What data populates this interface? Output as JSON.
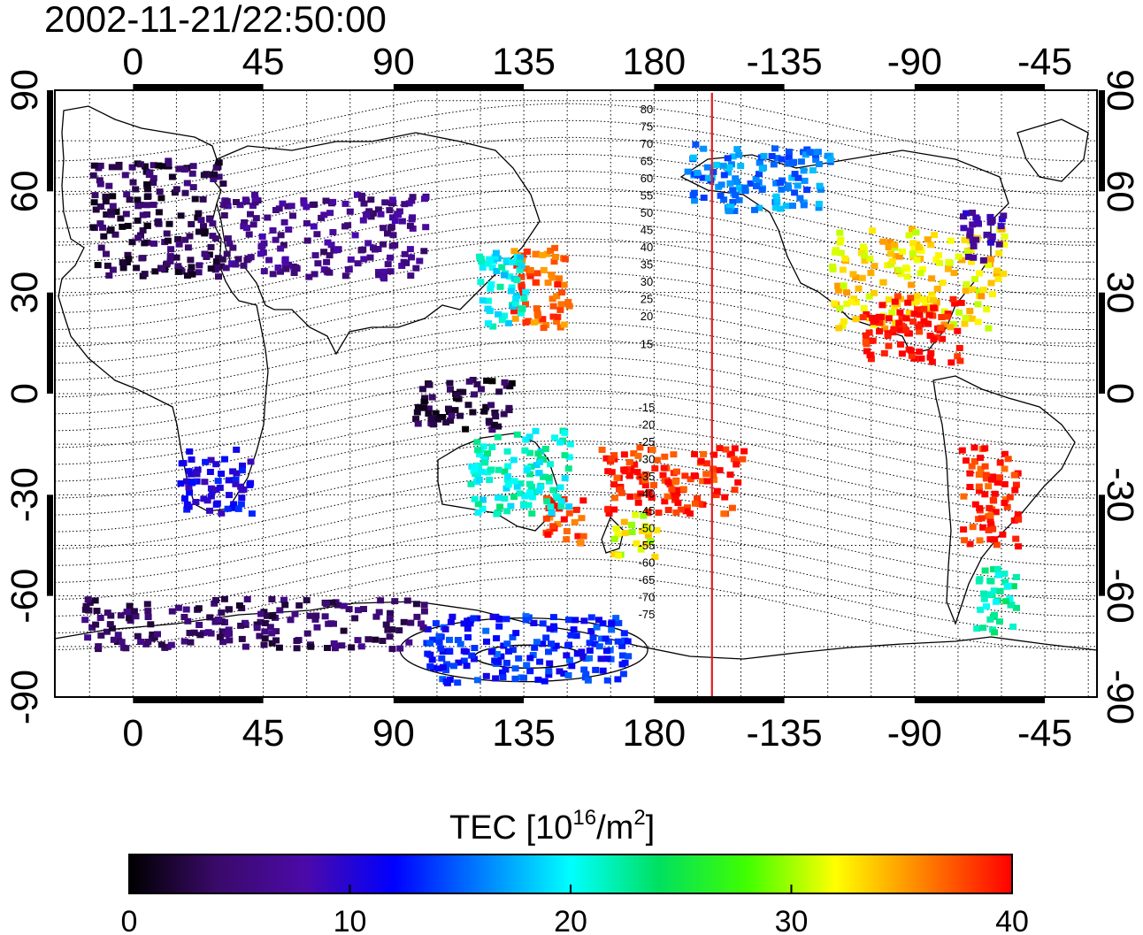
{
  "title": "2002-11-21/22:50:00",
  "map": {
    "lon_ticks_deg": [
      0,
      45,
      90,
      135,
      180,
      225,
      270,
      315
    ],
    "lon_tick_labels": [
      "0",
      "45",
      "90",
      "135",
      "180",
      "-135",
      "-90",
      "-45"
    ],
    "lat_ticks_deg": [
      90,
      60,
      30,
      0,
      -30,
      -60,
      -90
    ],
    "lat_tick_labels": [
      "90",
      "60",
      "30",
      "0",
      "-30",
      "-60",
      "-90"
    ],
    "lon_range_deg": [
      -27,
      333
    ],
    "lat_range_deg": [
      -90,
      90
    ],
    "grid": "dotted",
    "terminator_lon_deg": -160,
    "terminator_color": "#e41a1c",
    "contour_labels_north": [
      "80",
      "75",
      "70",
      "65",
      "60",
      "55",
      "50",
      "45",
      "40",
      "35",
      "30",
      "25",
      "20",
      "15"
    ],
    "contour_labels_south": [
      "-15",
      "-20",
      "-25",
      "-30",
      "-35",
      "-40",
      "-45",
      "-50",
      "-55",
      "-60",
      "-65",
      "-70",
      "-75"
    ]
  },
  "colorbar": {
    "label_main": "TEC  [10",
    "label_exp": "16",
    "label_mid": "/m",
    "label_exp2": "2",
    "label_end": "]",
    "min": 0,
    "max": 40,
    "tick_labels": [
      "0",
      "10",
      "20",
      "30",
      "40"
    ],
    "tick_values": [
      0,
      10,
      20,
      30,
      40
    ],
    "colors": [
      "#000000",
      "#3a0a6a",
      "#4b0aa8",
      "#0000ff",
      "#0080ff",
      "#00ffff",
      "#00e060",
      "#40ff00",
      "#ffff00",
      "#ff8000",
      "#ff0000"
    ]
  },
  "chart_data": {
    "type": "heatmap",
    "title": "2002-11-21/22:50:00",
    "xlabel": "",
    "ylabel": "",
    "value_label": "TEC [10^16/m^2]",
    "xlim": [
      -27,
      333
    ],
    "ylim": [
      -90,
      90
    ],
    "vlim": [
      0,
      40
    ],
    "regions": [
      {
        "lon": [
          -15,
          30
        ],
        "lat": [
          35,
          70
        ],
        "tec": 3
      },
      {
        "lon": [
          30,
          100
        ],
        "lat": [
          35,
          60
        ],
        "tec": 6
      },
      {
        "lon": [
          130,
          150
        ],
        "lat": [
          20,
          45
        ],
        "tec": 37
      },
      {
        "lon": [
          118,
          135
        ],
        "lat": [
          20,
          45
        ],
        "tec": 20
      },
      {
        "lon": [
          190,
          240
        ],
        "lat": [
          55,
          75
        ],
        "tec": 16
      },
      {
        "lon": [
          240,
          300
        ],
        "lat": [
          20,
          50
        ],
        "tec": 33
      },
      {
        "lon": [
          285,
          300
        ],
        "lat": [
          40,
          55
        ],
        "tec": 8
      },
      {
        "lon": [
          250,
          285
        ],
        "lat": [
          10,
          30
        ],
        "tec": 40
      },
      {
        "lon": [
          160,
          210
        ],
        "lat": [
          -35,
          -15
        ],
        "tec": 39
      },
      {
        "lon": [
          165,
          180
        ],
        "lat": [
          -48,
          -35
        ],
        "tec": 32
      },
      {
        "lon": [
          140,
          155
        ],
        "lat": [
          -45,
          -30
        ],
        "tec": 38
      },
      {
        "lon": [
          115,
          150
        ],
        "lat": [
          -35,
          -10
        ],
        "tec": 21
      },
      {
        "lon": [
          285,
          305
        ],
        "lat": [
          -45,
          -15
        ],
        "tec": 39
      },
      {
        "lon": [
          290,
          305
        ],
        "lat": [
          -70,
          -50
        ],
        "tec": 22
      },
      {
        "lon": [
          15,
          40
        ],
        "lat": [
          -35,
          -15
        ],
        "tec": 11
      },
      {
        "lon": [
          95,
          130
        ],
        "lat": [
          -10,
          5
        ],
        "tec": 2
      },
      {
        "lon": [
          100,
          170
        ],
        "lat": [
          -85,
          -65
        ],
        "tec": 13
      },
      {
        "lon": [
          -20,
          100
        ],
        "lat": [
          -75,
          -60
        ],
        "tec": 4
      }
    ]
  }
}
